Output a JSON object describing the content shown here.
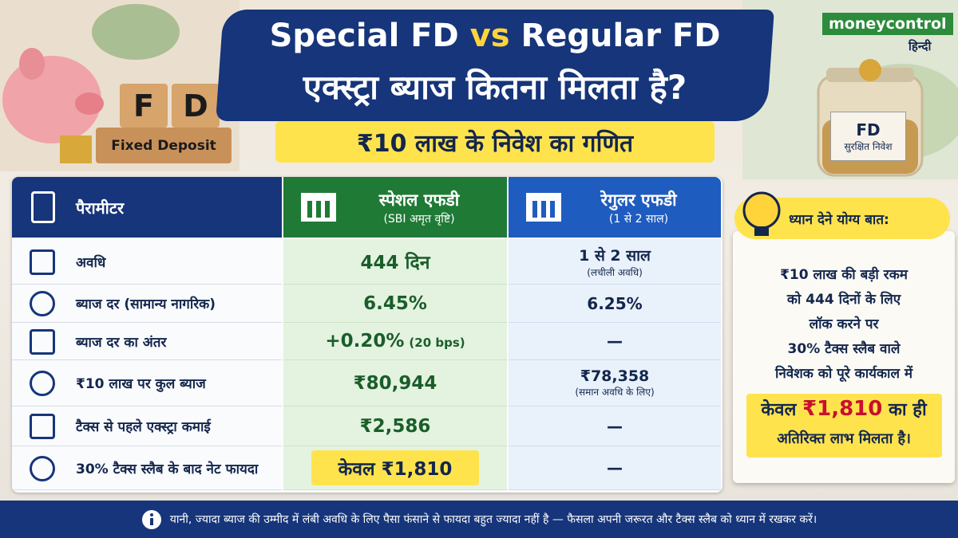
{
  "brand": {
    "name": "moneycontrol",
    "sub": "हिन्दी"
  },
  "header": {
    "title_line1": [
      "Special FD ",
      "vs",
      " Regular FD"
    ],
    "title_line2": "एक्स्ट्रा ब्याज कितना मिलता है?",
    "subtitle": "₹10 लाख के निवेश का गणित"
  },
  "decor": {
    "block_letters": [
      "F",
      "D"
    ],
    "block_label": "Fixed Deposit",
    "jar_title": "FD",
    "jar_sub": "सुरक्षित निवेश"
  },
  "table": {
    "columns": [
      {
        "title": "पैरामीटर"
      },
      {
        "title": "स्पेशल एफडी",
        "sub": "(SBI अमृत वृष्टि)"
      },
      {
        "title": "रेगुलर एफडी",
        "sub": "(1 से 2 साल)"
      }
    ],
    "rows": [
      {
        "label": "अवधि",
        "special": "444 दिन",
        "regular": "1 से 2 साल",
        "regular_note": "(लचीली अवधि)"
      },
      {
        "label": "ब्याज दर (सामान्य नागरिक)",
        "special": "6.45%",
        "regular": "6.25%"
      },
      {
        "label": "ब्याज दर का अंतर",
        "special": "+0.20%",
        "special_note": "(20 bps)",
        "regular": "—"
      },
      {
        "label": "₹10 लाख पर कुल ब्याज",
        "special": "₹80,944",
        "regular": "₹78,358",
        "regular_note": "(समान अवधि के लिए)"
      },
      {
        "label": "टैक्स से पहले एक्स्ट्रा कमाई",
        "special": "₹2,586",
        "regular": "—"
      },
      {
        "label": "30% टैक्स स्लैब के बाद नेट फायदा",
        "special": "केवल ₹1,810",
        "regular": "—"
      }
    ]
  },
  "note": {
    "title": "ध्यान देने योग्य बात:",
    "lines": [
      "₹10 लाख की बड़ी रकम",
      "को 444 दिनों के लिए",
      "लॉक करने पर",
      "30% टैक्स स्लैब वाले",
      "निवेशक को पूरे कार्यकाल में"
    ],
    "highlight": [
      "केवल ",
      "₹1,810",
      " का ही"
    ],
    "last_line": "अतिरिक्त लाभ मिलता है।"
  },
  "footer": "यानी, ज्यादा ब्याज की उम्मीद में लंबी अवधि के लिए पैसा फंसाने से फायदा बहुत ज्यादा नहीं है — फैसला अपनी जरूरत और टैक्स स्लैब को ध्यान में रखकर करें।"
}
